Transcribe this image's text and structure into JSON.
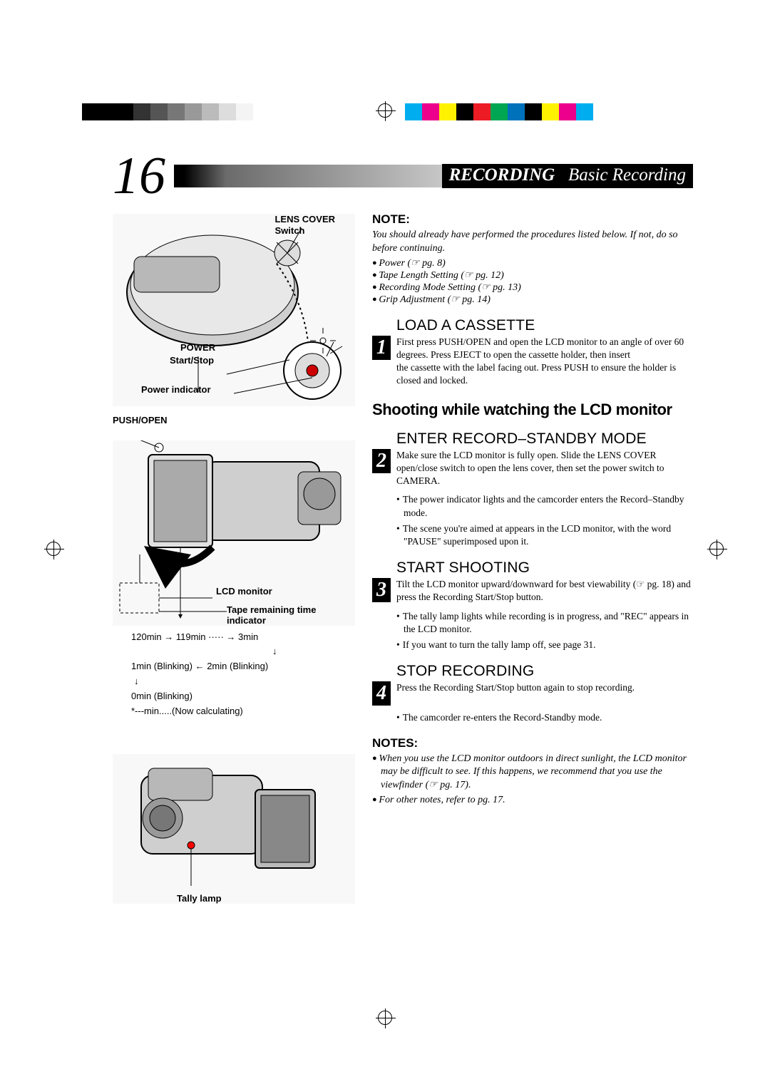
{
  "colorbar_left": [
    "#000000",
    "#000000",
    "#000000",
    "#333333",
    "#555555",
    "#777777",
    "#999999",
    "#bbbbbb",
    "#dddddd",
    "#f4f4f4",
    "#ffffff"
  ],
  "colorbar_right": [
    "#00aeef",
    "#ec008c",
    "#fff200",
    "#000000",
    "#ed1c24",
    "#00a651",
    "#0072bc",
    "#000000",
    "#fff200",
    "#ec008c",
    "#00aeef"
  ],
  "page_number": "16",
  "header": {
    "section": "RECORDING",
    "title": "Basic Recording"
  },
  "left": {
    "labels": {
      "lens_cover": "LENS COVER\nSwitch",
      "power": "POWER",
      "start_stop": "Start/Stop",
      "power_indicator": "Power indicator",
      "push_open": "PUSH/OPEN",
      "lcd_monitor": "LCD monitor",
      "tape_remaining": "Tape remaining time\nindicator",
      "tally_lamp": "Tally lamp"
    },
    "tape_times": {
      "row1": "120min → 119min ····· → 3min",
      "row2": "1min (Blinking) ← 2min (Blinking)",
      "row3": "0min (Blinking)",
      "row4": "*---min.....(Now calculating)"
    }
  },
  "right": {
    "note_heading": "NOTE:",
    "note_intro": "You should already have performed the procedures listed below. If not, do so before continuing.",
    "note_items": [
      "Power (☞ pg. 8)",
      "Tape Length Setting (☞ pg. 12)",
      "Recording Mode Setting (☞ pg. 13)",
      "Grip Adjustment (☞ pg. 14)"
    ],
    "steps": [
      {
        "num": "1",
        "heading": "LOAD A CASSETTE",
        "text": "First press PUSH/OPEN and open the LCD monitor to an angle of over 60 degrees. Press EJECT to open the cassette holder, then insert\nthe cassette with the label facing out. Press PUSH to ensure the holder is closed and locked."
      }
    ],
    "subhead": "Shooting while watching the LCD monitor",
    "steps2": [
      {
        "num": "2",
        "heading": "ENTER RECORD–STANDBY MODE",
        "text": "Make sure the LCD monitor is fully open. Slide the LENS COVER open/close switch to open the lens cover, then set the power switch to CAMERA.",
        "bullets": [
          "The power indicator lights and the camcorder enters the Record–Standby mode.",
          "The scene you're aimed at appears in the LCD monitor, with the word \"PAUSE\" superimposed upon it."
        ]
      },
      {
        "num": "3",
        "heading": "START SHOOTING",
        "text": "Tilt the LCD monitor upward/downward for best viewability (☞ pg. 18) and press the Recording Start/Stop button.",
        "bullets": [
          "The tally lamp lights while recording is in progress, and \"REC\" appears in the LCD monitor.",
          "If you want to turn the tally lamp off, see page 31."
        ]
      },
      {
        "num": "4",
        "heading": "STOP RECORDING",
        "text": "Press the Recording Start/Stop button again to stop recording.",
        "bullets": [
          "The camcorder re-enters the Record-Standby mode."
        ]
      }
    ],
    "notes_heading": "NOTES:",
    "notes_items": [
      "When you use the LCD monitor outdoors in direct sunlight, the LCD monitor may be difficult to see. If this happens, we recommend that you use the viewfinder (☞ pg. 17).",
      "For other notes, refer to pg. 17."
    ]
  }
}
